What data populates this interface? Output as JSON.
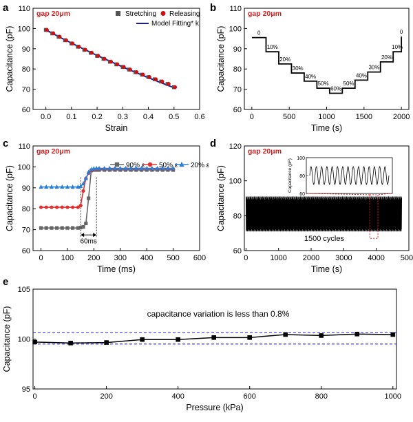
{
  "chart_data": [
    {
      "panel": "a",
      "type": "scatter",
      "title": "gap 20μm",
      "xlabel": "Strain",
      "ylabel": "Capacitance (pF)",
      "xlim": [
        -0.05,
        0.6
      ],
      "ylim": [
        60,
        110
      ],
      "xticks": [
        0.0,
        0.1,
        0.2,
        0.3,
        0.4,
        0.5,
        0.6
      ],
      "yticks": [
        60,
        70,
        80,
        90,
        100,
        110
      ],
      "legend": [
        "Stretching",
        "Releasing",
        "Model Fitting* k"
      ],
      "legend_position": "top-right",
      "series": [
        {
          "name": "Stretching",
          "marker": "square",
          "color": "#555555",
          "x": [
            0,
            0.025,
            0.05,
            0.075,
            0.1,
            0.125,
            0.15,
            0.175,
            0.2,
            0.225,
            0.25,
            0.275,
            0.3,
            0.325,
            0.35,
            0.375,
            0.4,
            0.425,
            0.45,
            0.475,
            0.5
          ],
          "y": [
            99.3,
            97.6,
            95.9,
            94.2,
            92.6,
            91.0,
            89.5,
            88.0,
            86.5,
            85.0,
            83.6,
            82.3,
            81.0,
            79.7,
            78.4,
            77.2,
            76.0,
            74.9,
            73.8,
            72.6,
            71.0
          ]
        },
        {
          "name": "Releasing",
          "marker": "circle",
          "color": "#cc1111",
          "x": [
            0,
            0.025,
            0.05,
            0.075,
            0.1,
            0.125,
            0.15,
            0.175,
            0.2,
            0.225,
            0.25,
            0.275,
            0.3,
            0.325,
            0.35,
            0.375,
            0.4,
            0.425,
            0.45,
            0.475,
            0.5
          ],
          "y": [
            99.3,
            97.6,
            95.9,
            94.2,
            92.6,
            91.0,
            89.5,
            88.0,
            86.5,
            85.0,
            83.6,
            82.3,
            81.0,
            79.7,
            78.4,
            77.2,
            76.0,
            74.9,
            73.8,
            72.6,
            71.0
          ]
        },
        {
          "name": "Model Fitting* k",
          "marker": "line",
          "color": "#1a1aaa",
          "x": [
            0,
            0.1,
            0.2,
            0.3,
            0.4,
            0.5
          ],
          "y": [
            99.3,
            92.6,
            86.5,
            81.0,
            76.0,
            71.0
          ]
        }
      ]
    },
    {
      "panel": "b",
      "type": "line",
      "title": "gap 20μm",
      "xlabel": "Time (s)",
      "ylabel": "Capacitance (pF)",
      "xlim": [
        -100,
        2100
      ],
      "ylim": [
        60,
        110
      ],
      "xticks": [
        0,
        500,
        1000,
        1500,
        2000
      ],
      "yticks": [
        60,
        70,
        80,
        90,
        100,
        110
      ],
      "step_times": [
        0,
        190,
        360,
        530,
        700,
        870,
        1040,
        1210,
        1380,
        1550,
        1720,
        1890,
        2000
      ],
      "step_values": [
        95.5,
        88.5,
        82.5,
        78.0,
        74.0,
        70.5,
        68.0,
        70.5,
        74.5,
        78.5,
        83.5,
        88.5,
        96.0
      ],
      "annotations": [
        "0",
        "10%",
        "20%",
        "30%",
        "40%",
        "50%",
        "60%",
        "50%",
        "40%",
        "30%",
        "20%",
        "10%",
        "0"
      ]
    },
    {
      "panel": "c",
      "type": "line",
      "title": "gap 20μm",
      "xlabel": "Time (ms)",
      "ylabel": "Capacitance (pF)",
      "xlim": [
        -30,
        600
      ],
      "ylim": [
        60,
        110
      ],
      "xticks": [
        0,
        100,
        200,
        300,
        400,
        500,
        600
      ],
      "yticks": [
        60,
        70,
        80,
        90,
        100,
        110
      ],
      "legend": [
        "90% ε",
        "50% ε",
        "20% ε"
      ],
      "legend_position": "top-right",
      "annotation": "60ms",
      "markers_x": [
        150,
        210
      ],
      "series": [
        {
          "name": "90% ε",
          "marker": "square",
          "color": "#666666",
          "x": [
            0,
            20,
            40,
            60,
            80,
            100,
            120,
            140,
            150,
            160,
            170,
            180,
            190,
            200,
            210,
            220,
            240,
            260,
            280,
            300,
            320,
            340,
            360,
            380,
            400,
            420,
            440,
            460,
            480,
            500
          ],
          "y": [
            70.8,
            70.8,
            70.8,
            70.8,
            70.8,
            70.8,
            70.8,
            70.8,
            71,
            71.3,
            73,
            85,
            98.2,
            98.5,
            98.5,
            98.5,
            98.5,
            98.5,
            98.5,
            98.5,
            98.5,
            98.5,
            98.5,
            98.5,
            98.5,
            98.5,
            98.5,
            98.5,
            98.5,
            98.5
          ]
        },
        {
          "name": "50% ε",
          "marker": "circle",
          "color": "#e03030",
          "x": [
            0,
            20,
            40,
            60,
            80,
            100,
            120,
            140,
            150,
            160,
            170,
            180,
            190,
            200,
            210,
            220,
            240,
            260,
            280,
            300,
            320,
            340,
            360,
            380,
            400,
            420,
            440,
            460,
            480,
            500
          ],
          "y": [
            80.7,
            80.7,
            80.7,
            80.7,
            80.7,
            80.7,
            80.7,
            80.7,
            81.5,
            88.5,
            94.5,
            97,
            98.3,
            98.8,
            98.9,
            99,
            99,
            99,
            99,
            99,
            99,
            99,
            99,
            99,
            99,
            99,
            99,
            99,
            99,
            99
          ]
        },
        {
          "name": "20% ε",
          "marker": "triangle",
          "color": "#2a7fd4",
          "x": [
            0,
            20,
            40,
            60,
            80,
            100,
            120,
            140,
            150,
            160,
            170,
            180,
            190,
            200,
            210,
            220,
            240,
            260,
            280,
            300,
            320,
            340,
            360,
            380,
            400,
            420,
            440,
            460,
            480,
            500
          ],
          "y": [
            90.4,
            90.4,
            90.4,
            90.4,
            90.4,
            90.4,
            90.4,
            90.4,
            90.8,
            92,
            94.5,
            97.5,
            98.8,
            99.2,
            99.3,
            99.3,
            99.3,
            99.3,
            99.3,
            99.3,
            99.3,
            99.3,
            99.3,
            99.3,
            99.3,
            99.3,
            99.3,
            99.3,
            99.3,
            99.3
          ]
        }
      ]
    },
    {
      "panel": "d",
      "type": "line",
      "title": "gap 20μm",
      "xlabel": "Time (s)",
      "ylabel": "Capacitance (pF)",
      "xlim": [
        -50,
        5000
      ],
      "ylim": [
        60,
        120
      ],
      "xticks": [
        0,
        1000,
        2000,
        3000,
        4000,
        5000
      ],
      "yticks": [
        60,
        80,
        100,
        120
      ],
      "annotation": "1500  cycles",
      "signal_min": 71,
      "signal_max": 91,
      "signal_end": 4780,
      "inset": {
        "ylabel": "Capacitance (pF)",
        "ylim": [
          60,
          100
        ],
        "yticks": [
          60,
          80,
          100
        ],
        "min": 70,
        "max": 90,
        "cycles": 15,
        "zoom_range": [
          3800,
          4050
        ]
      }
    },
    {
      "panel": "e",
      "type": "line",
      "title": "capacitance variation is less than 0.8%",
      "xlabel": "Pressure (kPa)",
      "ylabel": "Capacitance (pF)",
      "xlim": [
        -5,
        1010
      ],
      "ylim": [
        95,
        105
      ],
      "xticks": [
        0,
        200,
        400,
        600,
        800,
        1000
      ],
      "yticks": [
        95,
        100,
        105
      ],
      "bounds": [
        99.5,
        100.65
      ],
      "x": [
        0,
        100,
        200,
        300,
        400,
        500,
        600,
        700,
        800,
        900,
        1000
      ],
      "y": [
        99.7,
        99.6,
        99.65,
        99.95,
        99.95,
        100.15,
        100.15,
        100.45,
        100.35,
        100.5,
        100.45
      ]
    }
  ],
  "labels": {
    "panel_a": "a",
    "panel_b": "b",
    "panel_c": "c",
    "panel_d": "d",
    "panel_e": "e"
  },
  "colors": {
    "title_red": "#d81e1e",
    "blue_fit": "#1a1aaa",
    "dashed_blue": "#3333cc"
  }
}
